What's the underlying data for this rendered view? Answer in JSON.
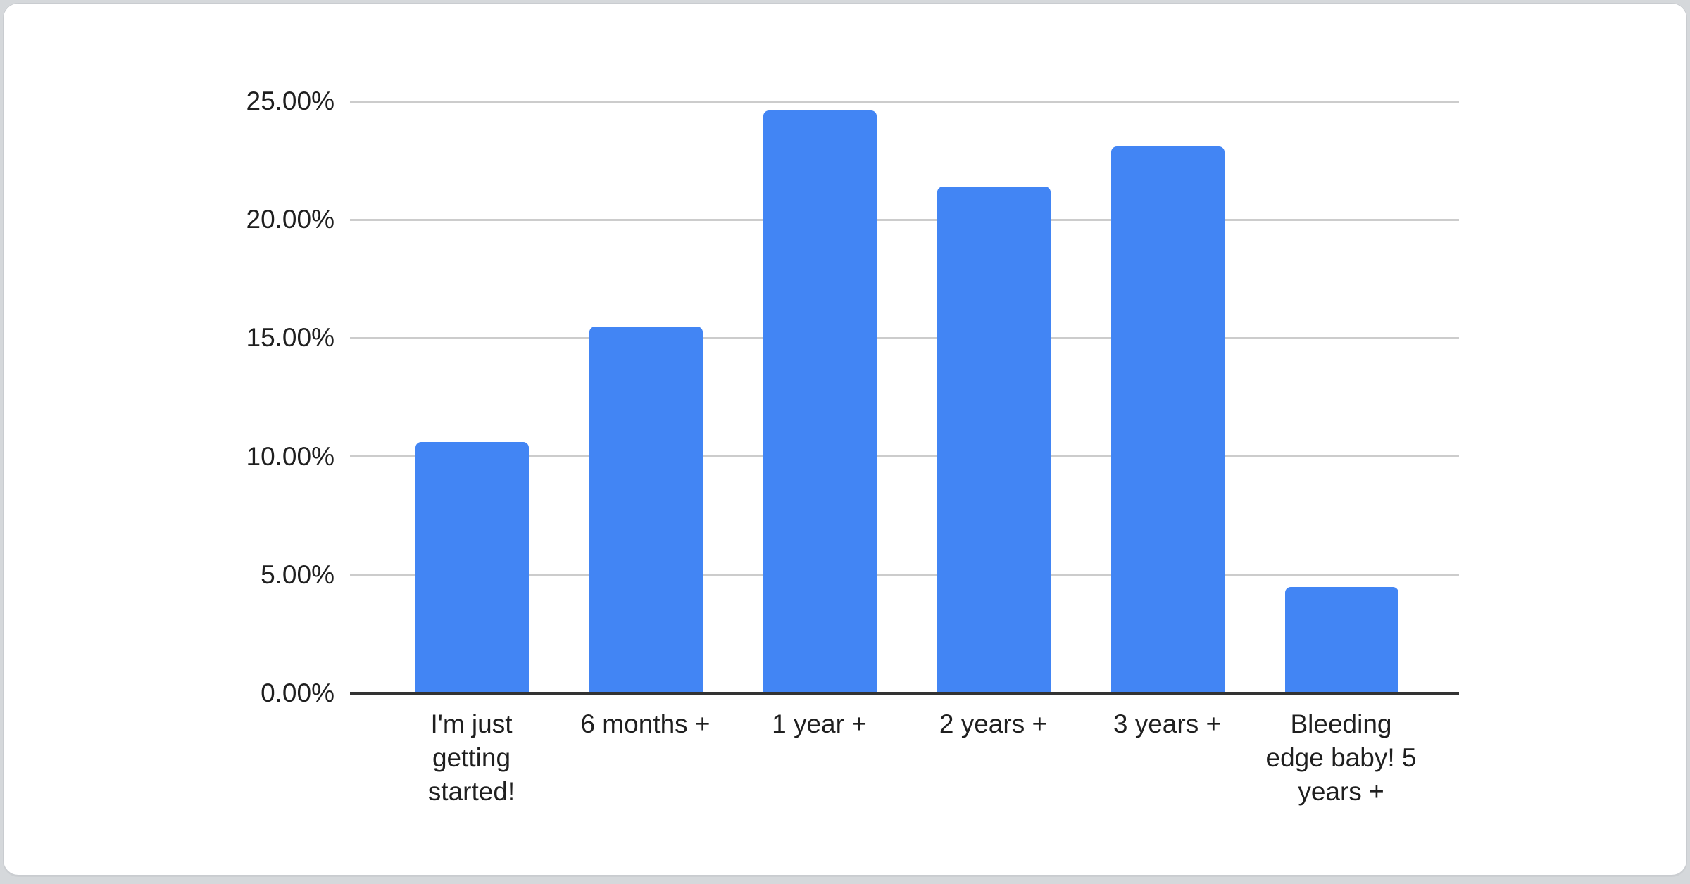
{
  "chart_data": {
    "type": "bar",
    "categories": [
      "I'm just getting started!",
      "6 months +",
      "1 year +",
      "2 years +",
      "3 years +",
      "Bleeding edge baby! 5 years +"
    ],
    "values": [
      10.6,
      15.5,
      24.6,
      21.4,
      23.1,
      4.5
    ],
    "value_suffix": "%",
    "ylim": [
      0,
      25
    ],
    "yticks": [
      {
        "label": "0.00%",
        "value": 0
      },
      {
        "label": "5.00%",
        "value": 5
      },
      {
        "label": "10.00%",
        "value": 10
      },
      {
        "label": "15.00%",
        "value": 15
      },
      {
        "label": "20.00%",
        "value": 20
      },
      {
        "label": "25.00%",
        "value": 25
      }
    ],
    "grid": true,
    "legend": "none",
    "style": {
      "bar_color": "#4285f4",
      "gridline_color": "#cccccc",
      "axis_line_color": "#333333",
      "label_color": "#1f1f1f",
      "card_background": "#ffffff",
      "page_background": "#d5d8db"
    }
  }
}
